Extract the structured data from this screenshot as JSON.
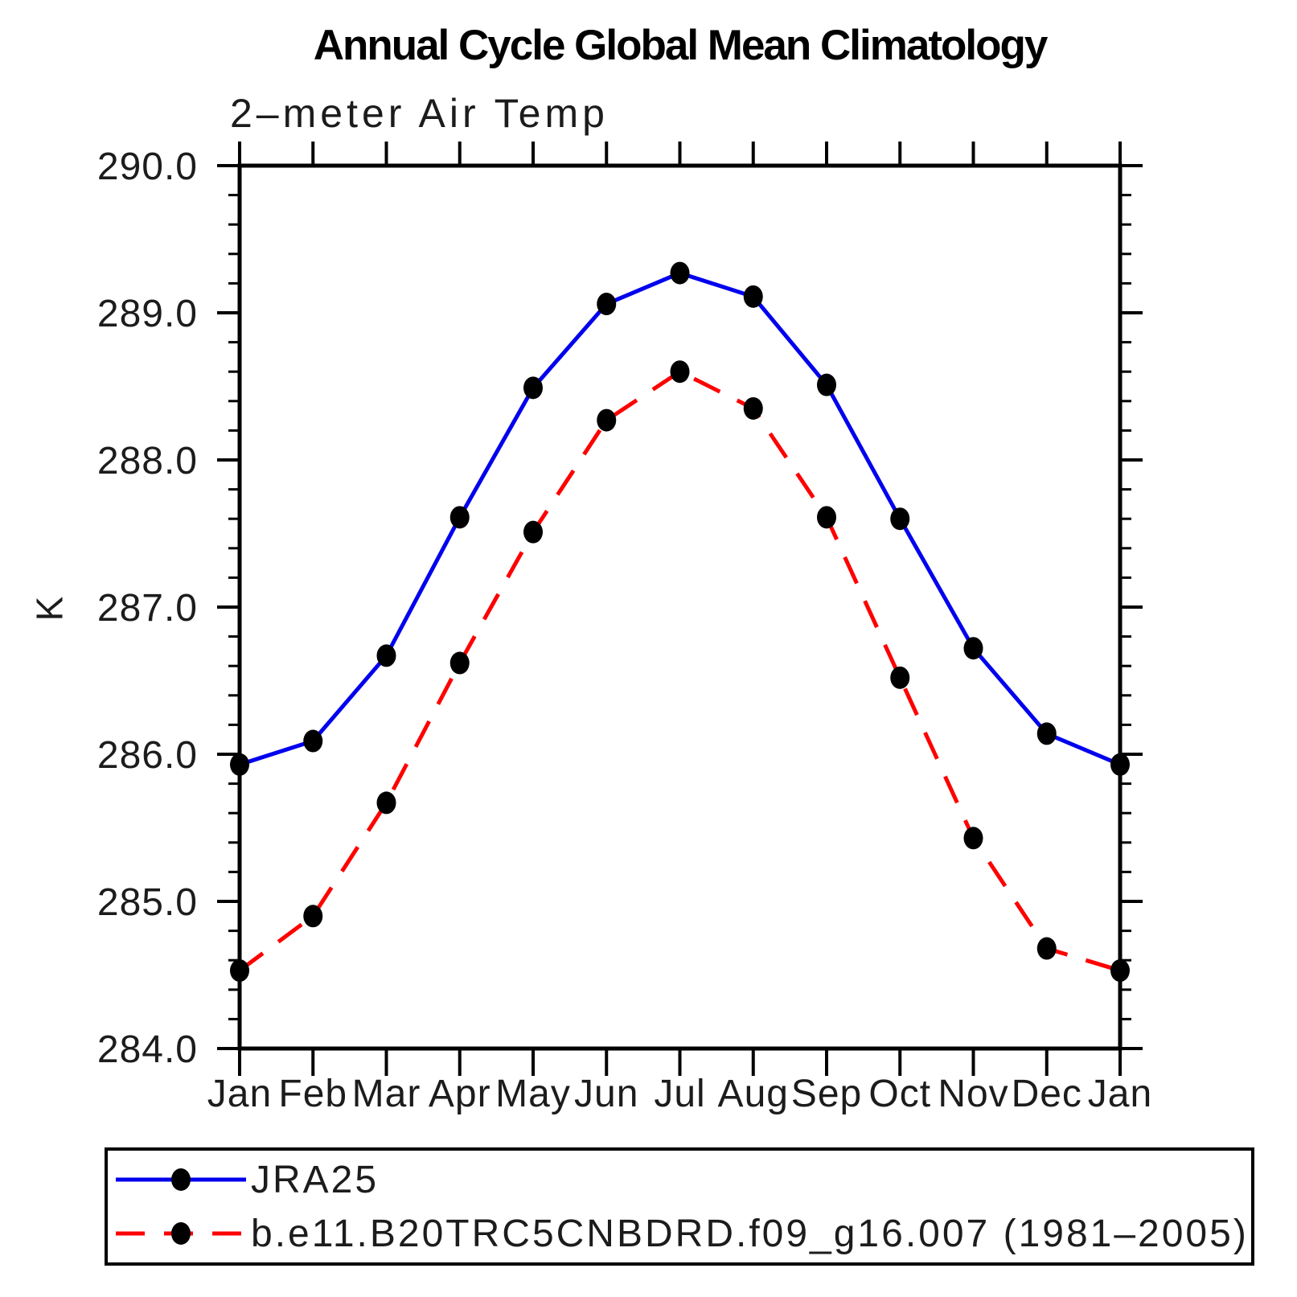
{
  "chart_data": {
    "type": "line",
    "title": "Annual Cycle Global Mean Climatology",
    "subtitle": "2–meter Air Temp",
    "ylabel": "K",
    "xlabel": "",
    "x_categories": [
      "Jan",
      "Feb",
      "Mar",
      "Apr",
      "May",
      "Jun",
      "Jul",
      "Aug",
      "Sep",
      "Oct",
      "Nov",
      "Dec",
      "Jan"
    ],
    "ylim": [
      284.0,
      290.0
    ],
    "ytick_step": 1.0,
    "yminor_step": 0.2,
    "ytick_labels": [
      "284.0",
      "285.0",
      "286.0",
      "287.0",
      "288.0",
      "289.0",
      "290.0"
    ],
    "grid": false,
    "legend_position": "bottom-left",
    "frame_color": "#000000",
    "series": [
      {
        "name": "JRA25",
        "color": "#0000ee",
        "dash": "none",
        "marker": "circle",
        "marker_color": "#000000",
        "values": [
          285.93,
          286.09,
          286.67,
          287.61,
          288.49,
          289.06,
          289.27,
          289.11,
          288.51,
          287.6,
          286.72,
          286.14,
          285.93
        ]
      },
      {
        "name": "b.e11.B20TRC5CNBDRD.f09_g16.007 (1981–2005)",
        "color": "#ff0000",
        "dash": "36 24",
        "marker": "circle",
        "marker_color": "#000000",
        "values": [
          284.53,
          284.9,
          285.67,
          286.62,
          287.51,
          288.27,
          288.6,
          288.35,
          287.61,
          286.52,
          285.43,
          284.68,
          284.53
        ]
      }
    ]
  }
}
